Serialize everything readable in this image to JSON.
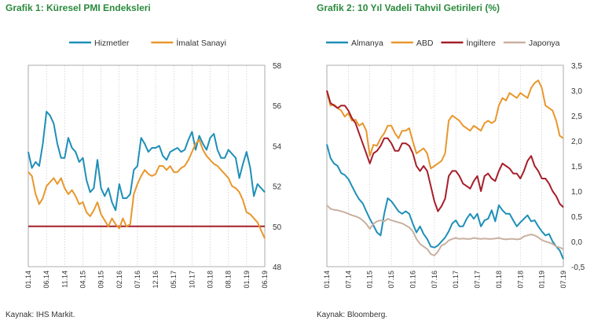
{
  "chart_data": [
    {
      "type": "line",
      "title": "Grafik 1: Küresel PMI Endeksleri",
      "source": "Kaynak: IHS Markit.",
      "ylim": [
        48,
        58
      ],
      "yticks": [
        "48",
        "50",
        "52",
        "54",
        "56",
        "58"
      ],
      "ytick_values": [
        48,
        50,
        52,
        54,
        56,
        58
      ],
      "x_range": [
        0,
        65
      ],
      "xticks": [
        {
          "label": "01.14",
          "x": 0
        },
        {
          "label": "06.14",
          "x": 5
        },
        {
          "label": "11.14",
          "x": 10
        },
        {
          "label": "04.15",
          "x": 15
        },
        {
          "label": "09.15",
          "x": 20
        },
        {
          "label": "02.16",
          "x": 25
        },
        {
          "label": "07.16",
          "x": 30
        },
        {
          "label": "12.16",
          "x": 35
        },
        {
          "label": "05.17",
          "x": 40
        },
        {
          "label": "10.17",
          "x": 45
        },
        {
          "label": "03.18",
          "x": 50
        },
        {
          "label": "08.18",
          "x": 55
        },
        {
          "label": "01.19",
          "x": 60
        },
        {
          "label": "06.19",
          "x": 65
        }
      ],
      "reference_line": {
        "y": 50,
        "color": "#a61e2a"
      },
      "series": [
        {
          "name": "Hizmetler",
          "color": "#1e8fb8",
          "values": [
            53.7,
            52.9,
            53.2,
            53.0,
            54.1,
            55.7,
            55.5,
            55.1,
            54.1,
            53.4,
            53.4,
            54.4,
            53.9,
            53.7,
            53.2,
            53.4,
            52.3,
            51.7,
            51.9,
            53.3,
            51.9,
            51.5,
            51.9,
            51.2,
            50.8,
            52.1,
            51.4,
            51.4,
            51.6,
            52.8,
            53.0,
            54.4,
            54.1,
            53.7,
            53.9,
            53.9,
            54.0,
            53.5,
            53.3,
            53.7,
            53.8,
            53.9,
            53.7,
            53.8,
            54.3,
            54.7,
            53.8,
            54.5,
            54.1,
            53.8,
            54.4,
            54.6,
            53.8,
            53.4,
            53.4,
            53.8,
            53.6,
            53.4,
            52.4,
            53.1,
            53.7,
            52.9,
            51.5,
            52.1,
            51.9,
            51.7
          ]
        },
        {
          "name": "İmalat Sanayi",
          "color": "#e8972c",
          "values": [
            52.7,
            52.5,
            51.6,
            51.1,
            51.4,
            52.0,
            52.2,
            52.4,
            52.1,
            52.4,
            51.9,
            51.6,
            51.8,
            51.5,
            51.1,
            51.2,
            50.7,
            50.5,
            50.8,
            51.2,
            50.6,
            50.3,
            50.0,
            50.4,
            50.1,
            49.9,
            50.4,
            50.0,
            50.1,
            51.6,
            52.1,
            52.5,
            52.8,
            52.6,
            52.5,
            52.6,
            53.0,
            53.0,
            52.8,
            53.0,
            52.7,
            52.7,
            52.9,
            53.0,
            53.3,
            53.7,
            54.1,
            54.3,
            53.8,
            53.5,
            53.3,
            53.1,
            53.0,
            52.8,
            52.6,
            52.4,
            52.0,
            51.9,
            51.7,
            51.3,
            50.7,
            50.6,
            50.4,
            50.2,
            49.8,
            49.4
          ]
        }
      ]
    },
    {
      "type": "line",
      "title": "Grafik 2: 10 Yıl Vadeli Tahvil Getirileri (%)",
      "source": "Kaynak: Bloomberg.",
      "ylim": [
        -0.5,
        3.5
      ],
      "yticks": [
        "-0,5",
        "0,0",
        "0,5",
        "1,0",
        "1,5",
        "2,0",
        "2,5",
        "3,0",
        "3,5"
      ],
      "ytick_values": [
        -0.5,
        0,
        0.5,
        1,
        1.5,
        2,
        2.5,
        3,
        3.5
      ],
      "x_range": [
        0,
        66
      ],
      "xticks": [
        {
          "label": "01.14",
          "x": 0
        },
        {
          "label": "07.14",
          "x": 6
        },
        {
          "label": "01.15",
          "x": 12
        },
        {
          "label": "07.15",
          "x": 18
        },
        {
          "label": "01.16",
          "x": 24
        },
        {
          "label": "07.16",
          "x": 30
        },
        {
          "label": "01.17",
          "x": 36
        },
        {
          "label": "07.17",
          "x": 42
        },
        {
          "label": "01.18",
          "x": 48
        },
        {
          "label": "07.18",
          "x": 54
        },
        {
          "label": "01.19",
          "x": 60
        },
        {
          "label": "07.19",
          "x": 66
        }
      ],
      "series": [
        {
          "name": "Almanya",
          "color": "#1e8fb8",
          "values": [
            1.93,
            1.66,
            1.55,
            1.5,
            1.36,
            1.32,
            1.24,
            1.1,
            0.96,
            0.84,
            0.76,
            0.6,
            0.45,
            0.32,
            0.18,
            0.12,
            0.55,
            0.86,
            0.8,
            0.7,
            0.6,
            0.55,
            0.6,
            0.55,
            0.35,
            0.18,
            0.3,
            0.15,
            0.05,
            -0.1,
            -0.12,
            -0.08,
            0.0,
            0.08,
            0.2,
            0.36,
            0.42,
            0.3,
            0.3,
            0.45,
            0.55,
            0.45,
            0.55,
            0.3,
            0.42,
            0.45,
            0.62,
            0.4,
            0.72,
            0.62,
            0.55,
            0.55,
            0.42,
            0.3,
            0.38,
            0.45,
            0.52,
            0.4,
            0.42,
            0.3,
            0.2,
            0.12,
            0.15,
            0.0,
            -0.1,
            -0.18,
            -0.35
          ]
        },
        {
          "name": "ABD",
          "color": "#e8972c",
          "values": [
            2.98,
            2.7,
            2.72,
            2.65,
            2.6,
            2.48,
            2.55,
            2.4,
            2.42,
            2.3,
            2.35,
            2.2,
            1.7,
            1.92,
            1.9,
            2.05,
            2.15,
            2.3,
            2.3,
            2.15,
            2.05,
            2.2,
            2.2,
            2.25,
            1.98,
            1.75,
            1.8,
            1.85,
            1.75,
            1.45,
            1.5,
            1.55,
            1.6,
            1.75,
            2.4,
            2.5,
            2.45,
            2.4,
            2.3,
            2.25,
            2.2,
            2.3,
            2.25,
            2.2,
            2.35,
            2.4,
            2.35,
            2.4,
            2.7,
            2.85,
            2.8,
            2.95,
            2.9,
            2.85,
            2.95,
            2.9,
            2.85,
            3.05,
            3.15,
            3.2,
            3.05,
            2.7,
            2.65,
            2.6,
            2.4,
            2.1,
            2.05
          ]
        },
        {
          "name": "İngiltere",
          "color": "#a61e2a",
          "values": [
            3.0,
            2.75,
            2.7,
            2.65,
            2.7,
            2.7,
            2.6,
            2.45,
            2.35,
            2.15,
            1.95,
            1.75,
            1.55,
            1.75,
            1.8,
            1.9,
            2.05,
            2.05,
            1.95,
            1.8,
            1.8,
            1.95,
            1.95,
            1.9,
            1.75,
            1.5,
            1.4,
            1.5,
            1.4,
            1.1,
            0.8,
            0.6,
            0.7,
            0.85,
            1.3,
            1.4,
            1.4,
            1.3,
            1.15,
            1.1,
            1.05,
            1.2,
            1.3,
            1.0,
            1.3,
            1.35,
            1.25,
            1.2,
            1.4,
            1.55,
            1.5,
            1.45,
            1.35,
            1.35,
            1.25,
            1.4,
            1.6,
            1.7,
            1.5,
            1.4,
            1.25,
            1.25,
            1.15,
            1.0,
            0.9,
            0.75,
            0.68
          ]
        },
        {
          "name": "Japonya",
          "color": "#c9b0a0",
          "values": [
            0.72,
            0.65,
            0.63,
            0.62,
            0.6,
            0.58,
            0.55,
            0.52,
            0.5,
            0.47,
            0.42,
            0.35,
            0.25,
            0.35,
            0.4,
            0.42,
            0.4,
            0.45,
            0.42,
            0.4,
            0.38,
            0.36,
            0.32,
            0.28,
            0.2,
            0.05,
            -0.05,
            -0.1,
            -0.15,
            -0.25,
            -0.28,
            -0.2,
            -0.08,
            -0.05,
            0.02,
            0.05,
            0.07,
            0.05,
            0.06,
            0.05,
            0.05,
            0.07,
            0.06,
            0.05,
            0.06,
            0.05,
            0.05,
            0.06,
            0.07,
            0.05,
            0.04,
            0.05,
            0.05,
            0.04,
            0.05,
            0.1,
            0.12,
            0.14,
            0.12,
            0.08,
            0.03,
            0.0,
            -0.02,
            -0.05,
            -0.1,
            -0.12,
            -0.15
          ]
        }
      ]
    }
  ]
}
